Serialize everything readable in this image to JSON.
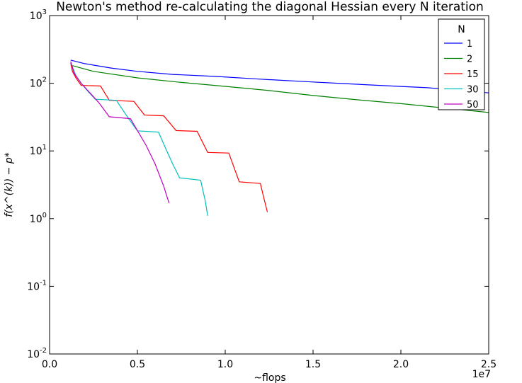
{
  "chart_data": {
    "type": "line",
    "title": "Newton's method re-calculating the diagonal Hessian every N iteration",
    "xlabel": "~flops",
    "ylabel": "f(x^(k)) − p*",
    "y_scale": "log",
    "xlim": [
      0,
      25000000
    ],
    "ylim": [
      0.01,
      1000
    ],
    "x_offset_label": "1e7",
    "x_ticks": [
      {
        "value": 0,
        "label": "0.0"
      },
      {
        "value": 5000000,
        "label": "0.5"
      },
      {
        "value": 10000000,
        "label": "1.0"
      },
      {
        "value": 15000000,
        "label": "1.5"
      },
      {
        "value": 20000000,
        "label": "2.0"
      },
      {
        "value": 25000000,
        "label": "2.5"
      }
    ],
    "y_ticks": [
      {
        "value": 0.01,
        "base": "10",
        "exp": "-2"
      },
      {
        "value": 0.1,
        "base": "10",
        "exp": "-1"
      },
      {
        "value": 1,
        "base": "10",
        "exp": "0"
      },
      {
        "value": 10,
        "base": "10",
        "exp": "1"
      },
      {
        "value": 100,
        "base": "10",
        "exp": "2"
      },
      {
        "value": 1000,
        "base": "10",
        "exp": "3"
      }
    ],
    "grid": false,
    "legend": {
      "title": "N",
      "position": "top-right"
    },
    "series": [
      {
        "name": "1",
        "color": "#0000ff",
        "x": [
          1200000,
          2000000,
          3500000,
          5000000,
          7000000,
          9500000,
          12000000,
          14500000,
          17000000,
          19500000,
          21500000,
          23000000,
          25000000
        ],
        "y": [
          220,
          195,
          168,
          150,
          135,
          126,
          115,
          106,
          98,
          91,
          86,
          80,
          72
        ]
      },
      {
        "name": "2",
        "color": "#008000",
        "x": [
          1200000,
          2500000,
          5000000,
          7500000,
          10000000,
          12500000,
          15000000,
          17500000,
          20000000,
          22500000,
          25000000
        ],
        "y": [
          185,
          150,
          120,
          103,
          90,
          78,
          66,
          57,
          50,
          43,
          37
        ]
      },
      {
        "name": "15",
        "color": "#ff0000",
        "x": [
          1200000,
          1300000,
          1500000,
          1800000,
          2900000,
          3400000,
          4800000,
          5400000,
          6500000,
          7200000,
          8400000,
          9000000,
          10200000,
          10800000,
          12000000,
          12200000,
          12400000
        ],
        "y": [
          200,
          150,
          120,
          93,
          91,
          56,
          54,
          34,
          33,
          20,
          19.5,
          9.5,
          9.3,
          3.5,
          3.3,
          2,
          1.25
        ]
      },
      {
        "name": "30",
        "color": "#00bfbf",
        "x": [
          1200000,
          1500000,
          1800000,
          2200000,
          2600000,
          3800000,
          4500000,
          5000000,
          6200000,
          6600000,
          7000000,
          7400000,
          8600000,
          8700000,
          8850000,
          9000000
        ],
        "y": [
          200,
          130,
          100,
          75,
          58,
          56,
          30,
          19.8,
          19,
          11,
          6.5,
          4,
          3.7,
          2.8,
          1.9,
          1.1
        ]
      },
      {
        "name": "50",
        "color": "#bf00bf",
        "x": [
          1200000,
          1400000,
          1800000,
          2300000,
          2800000,
          3400000,
          4600000,
          5000000,
          5500000,
          6000000,
          6500000,
          6800000
        ],
        "y": [
          210,
          140,
          100,
          72,
          52,
          32,
          30,
          20,
          12,
          6.5,
          3,
          1.7
        ]
      }
    ]
  }
}
